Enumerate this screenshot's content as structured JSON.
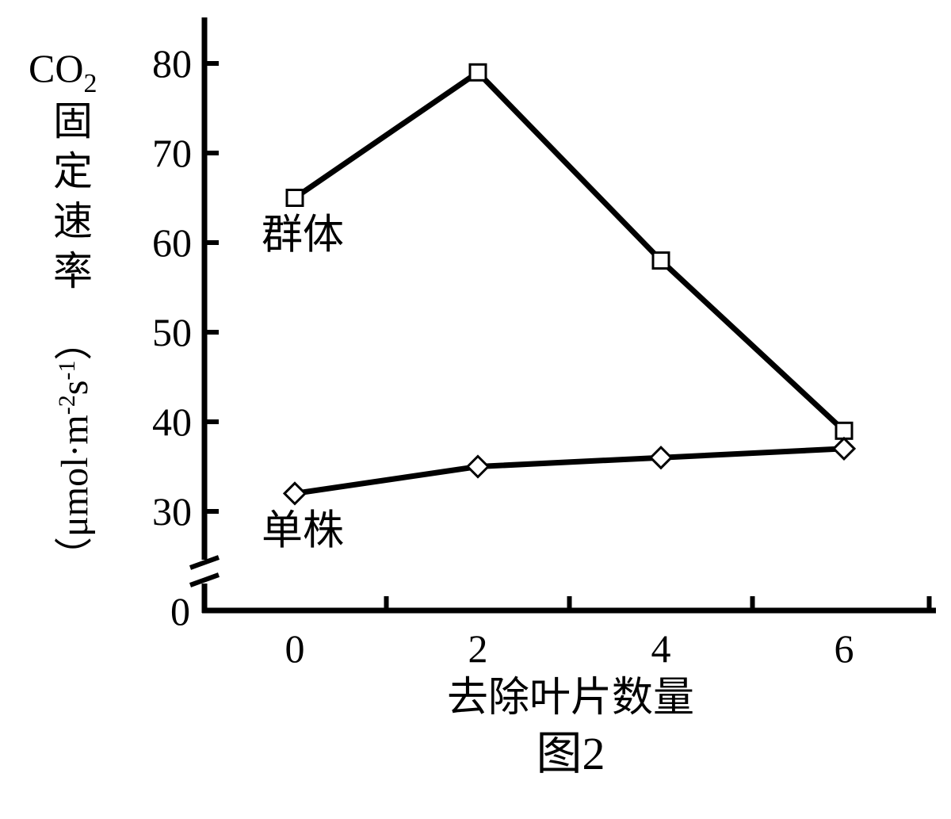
{
  "chart_data": {
    "type": "line",
    "title": "",
    "caption": "图2",
    "xlabel": "去除叶片数量",
    "ylabel": {
      "main": "CO",
      "sub": "2",
      "chars": [
        "固",
        "定",
        "速",
        "率"
      ],
      "unit_open": "（",
      "unit_base": "μmol·m",
      "unit_exp1": "-2",
      "unit_mid": "s",
      "unit_exp2": "-1",
      "unit_close": "）"
    },
    "x": [
      0,
      2,
      4,
      6
    ],
    "x_tick_labels": [
      "0",
      "2",
      "4",
      "6"
    ],
    "xlim": [
      -1,
      7
    ],
    "y_tick_values": [
      30,
      40,
      50,
      60,
      70,
      80
    ],
    "y_tick_labels": [
      "30",
      "40",
      "50",
      "60",
      "70",
      "80"
    ],
    "ylim": [
      25,
      85
    ],
    "y_axis_break": true,
    "y_origin_label": "0",
    "grid": false,
    "series": [
      {
        "name": "群体",
        "marker": "square",
        "values": [
          65,
          79,
          58,
          39
        ]
      },
      {
        "name": "单株",
        "marker": "diamond",
        "values": [
          32,
          35,
          36,
          37
        ]
      }
    ],
    "colors": {
      "line": "#000000",
      "marker_fill": "#ffffff",
      "background": "#ffffff"
    }
  }
}
